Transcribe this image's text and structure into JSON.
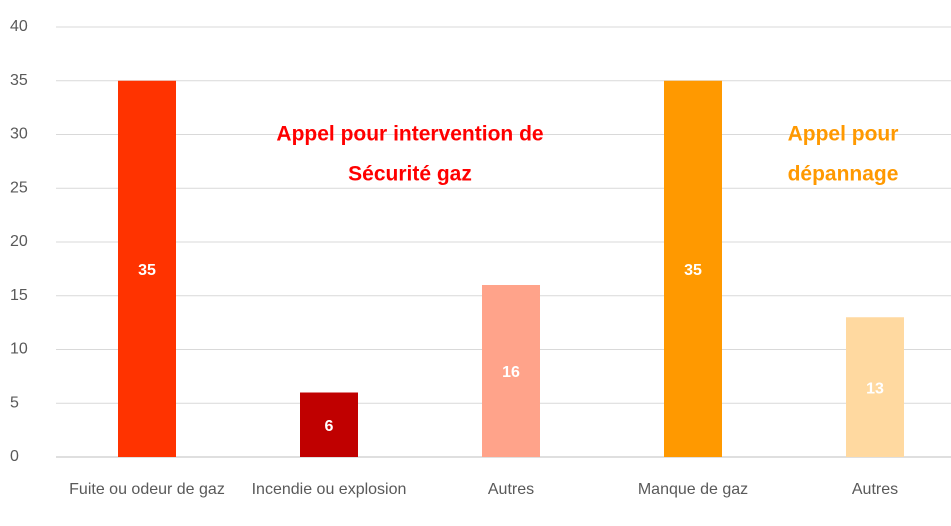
{
  "chart_data": {
    "type": "bar",
    "categories": [
      "Fuite ou odeur de gaz",
      "Incendie ou explosion",
      "Autres",
      "Manque de gaz",
      "Autres"
    ],
    "values": [
      35,
      6,
      16,
      35,
      13
    ],
    "colors": [
      "#ff3300",
      "#c00000",
      "#ffa38a",
      "#ff9900",
      "#ffd9a0"
    ],
    "ylim": [
      0,
      40
    ],
    "yticks": [
      0,
      5,
      10,
      15,
      20,
      25,
      30,
      35,
      40
    ],
    "grid": true,
    "annotations": [
      {
        "lines": [
          "Appel pour intervention de",
          "Sécurité gaz"
        ],
        "color": "#ff0000"
      },
      {
        "lines": [
          "Appel pour",
          "dépannage"
        ],
        "color": "#ff9900"
      }
    ]
  }
}
